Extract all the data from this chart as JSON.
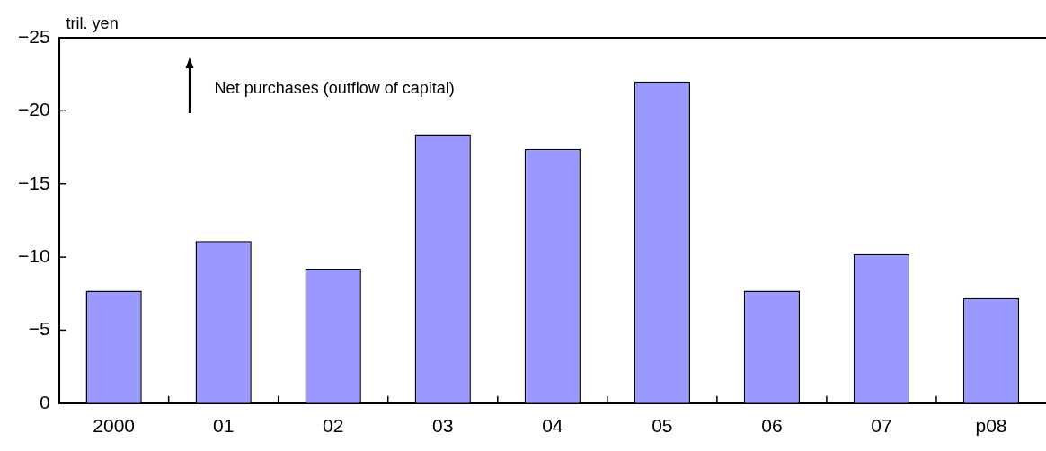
{
  "chart_data": {
    "type": "bar",
    "ylabel": "tril. yen",
    "annotations": [
      "Net purchases (outflow of capital)"
    ],
    "categories": [
      "2000",
      "01",
      "02",
      "03",
      "04",
      "05",
      "06",
      "07",
      "p08"
    ],
    "values": [
      -7.7,
      -11.1,
      -9.2,
      -18.4,
      -17.4,
      -22.0,
      -7.7,
      -10.2,
      -7.2
    ],
    "color": "#9999ff",
    "ylim": [
      0,
      -25
    ],
    "yticks": [
      {
        "value": 0,
        "label": "0"
      },
      {
        "value": -5,
        "label": "−5"
      },
      {
        "value": -10,
        "label": "−10"
      },
      {
        "value": -15,
        "label": "−15"
      },
      {
        "value": -20,
        "label": "−20"
      },
      {
        "value": -25,
        "label": "−25"
      }
    ],
    "grid": false,
    "legend": false
  }
}
